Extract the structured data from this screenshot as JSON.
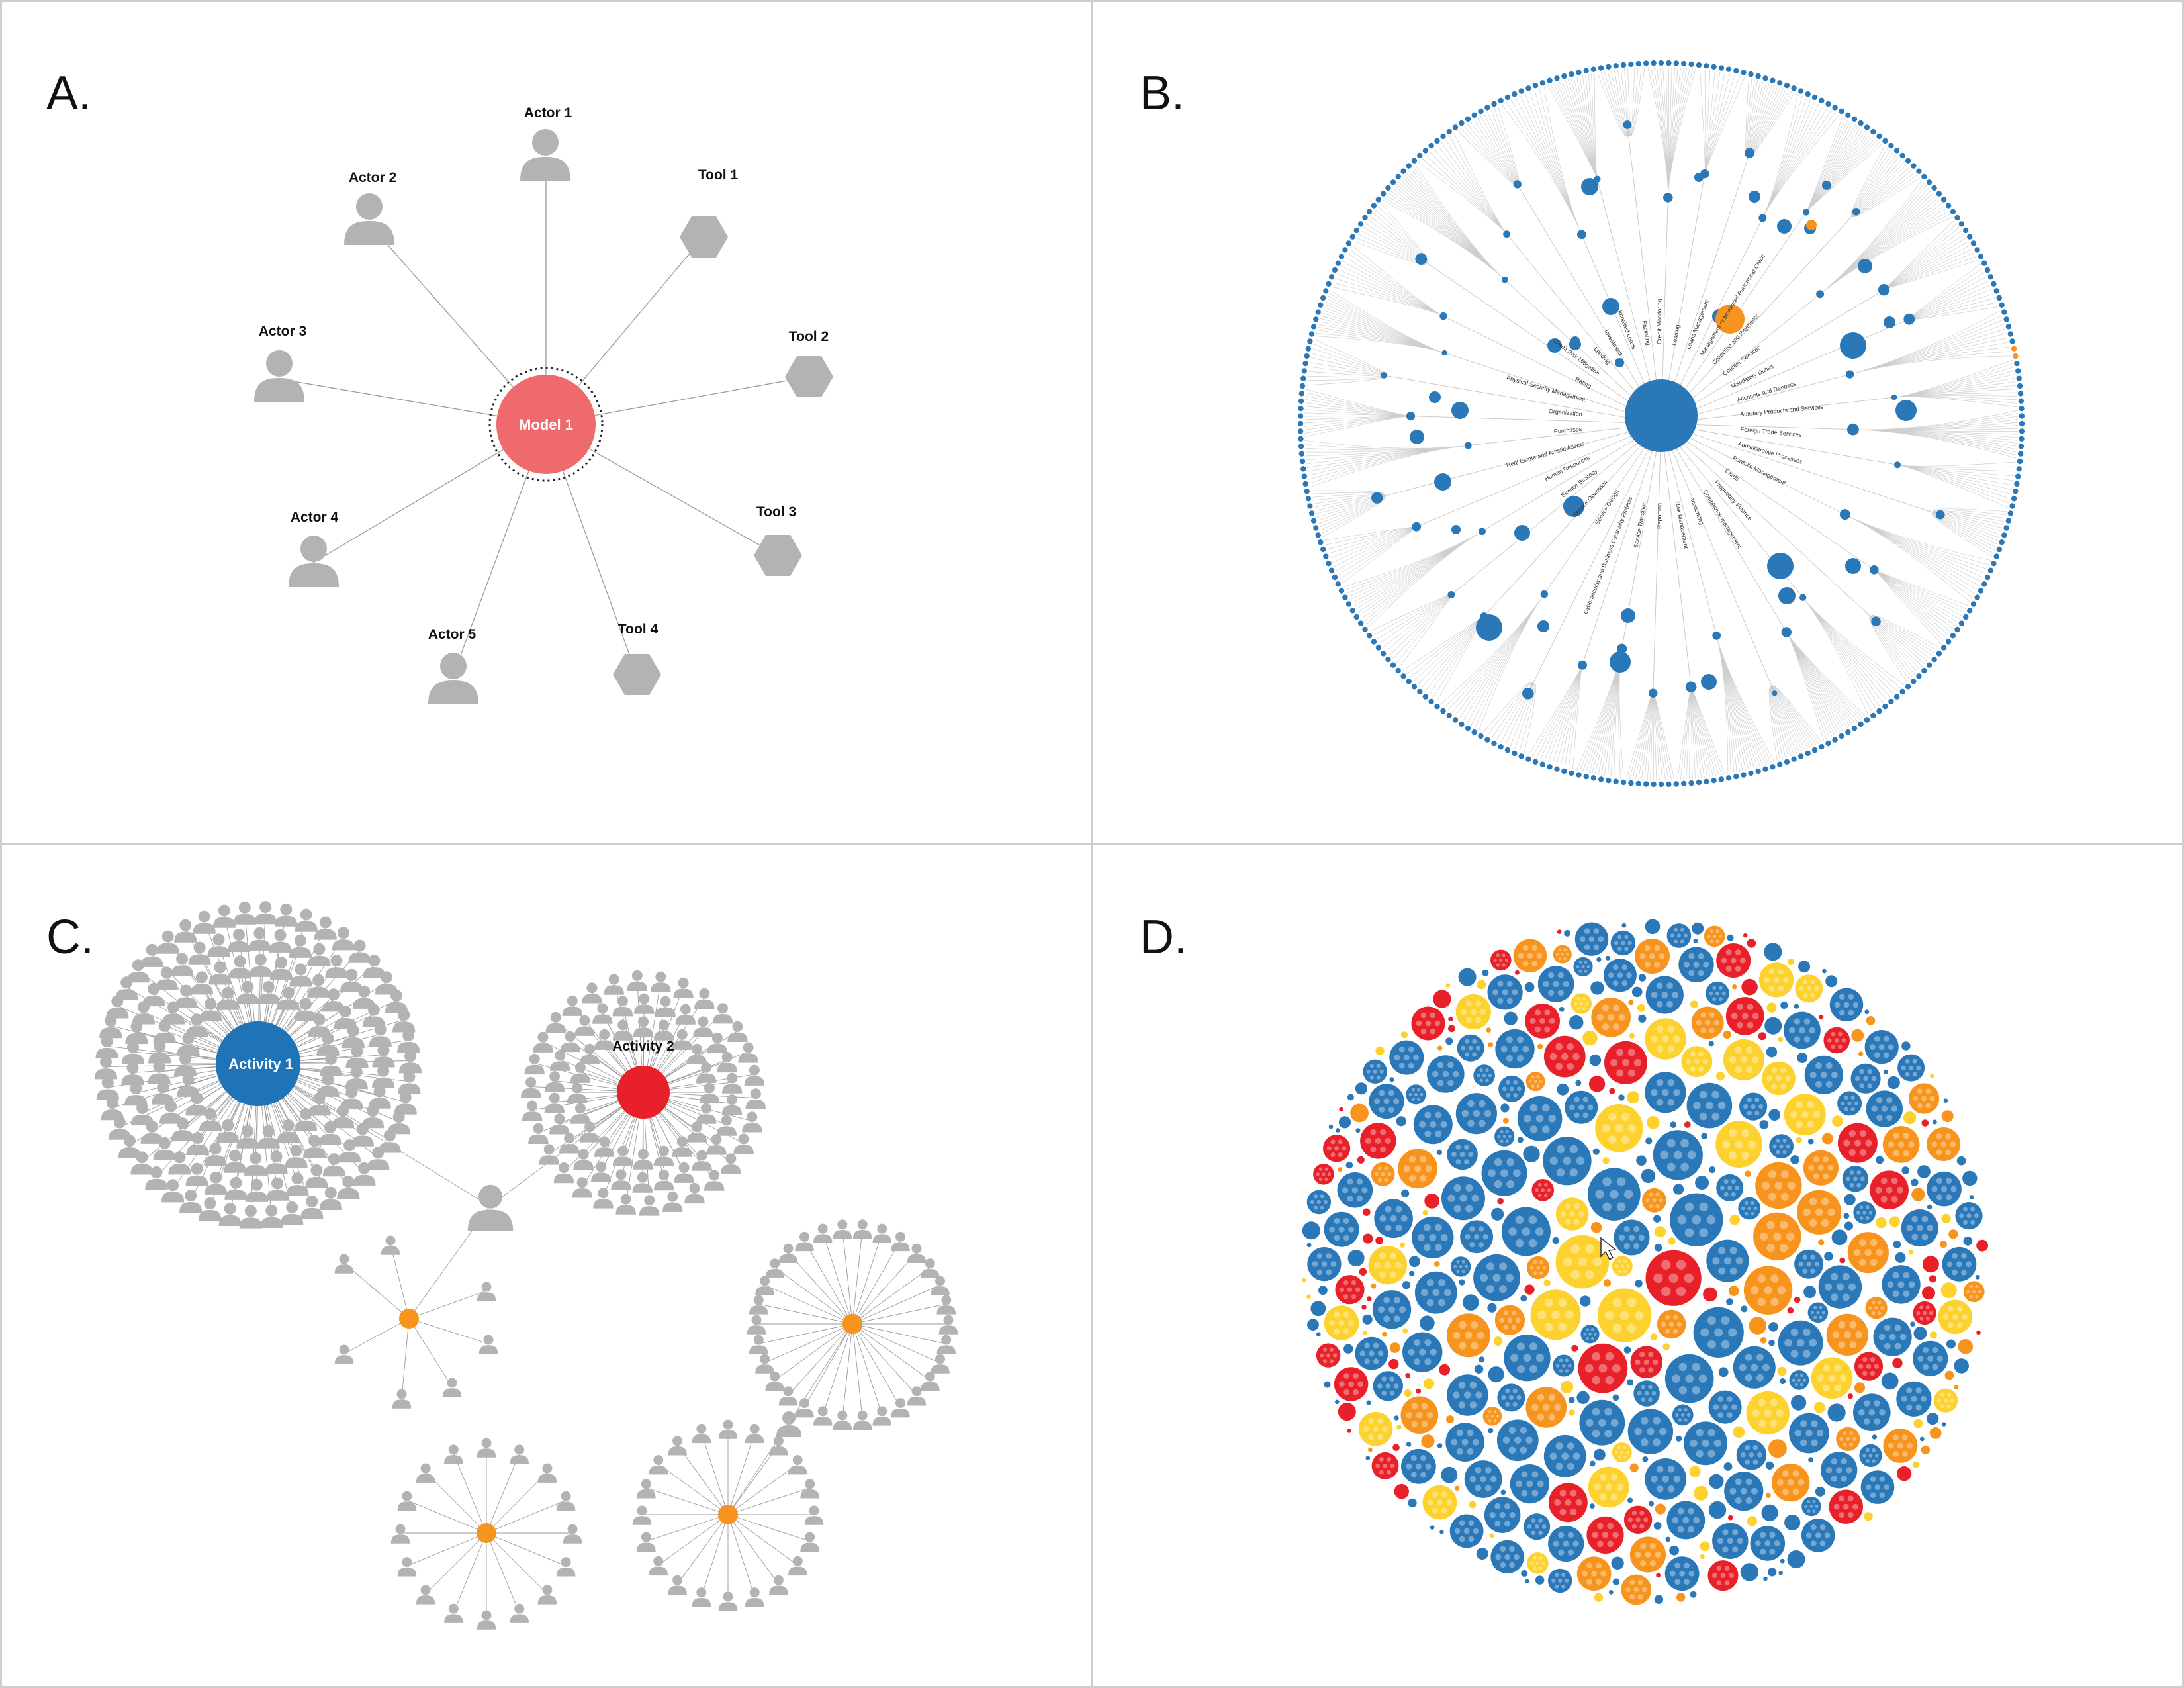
{
  "colors": {
    "panel_border": "#cfcfcf",
    "gray_node": "#b3b3b3",
    "edge": "#9a9a9a",
    "model_red": "#ef6a6c",
    "activity_blue": "#1f73b7",
    "activity_red": "#e8202a",
    "orange": "#f7941d",
    "yellow": "#fdd22f",
    "radial_blue": "#2a78b8"
  },
  "panels": {
    "a": {
      "label": "A."
    },
    "b": {
      "label": "B."
    },
    "c": {
      "label": "C."
    },
    "d": {
      "label": "D."
    }
  },
  "panel_a": {
    "center": {
      "label": "Model 1"
    },
    "nodes": [
      {
        "label": "Actor 1",
        "kind": "actor-icon"
      },
      {
        "label": "Actor 2",
        "kind": "actor-icon"
      },
      {
        "label": "Tool 1",
        "kind": "tool-icon"
      },
      {
        "label": "Actor 3",
        "kind": "actor-icon"
      },
      {
        "label": "Tool 2",
        "kind": "tool-icon"
      },
      {
        "label": "Actor 4",
        "kind": "actor-icon"
      },
      {
        "label": "Tool 3",
        "kind": "tool-icon"
      },
      {
        "label": "Actor 5",
        "kind": "actor-icon"
      },
      {
        "label": "Tool 4",
        "kind": "tool-icon"
      }
    ]
  },
  "panel_b": {
    "inner_labels": [
      "Loans Management",
      "Management of Monitored Performing Credit",
      "Collection and Payments",
      "Counter Services",
      "Mandatory Duties",
      "Accounts and Deposits",
      "Auxiliary Products and Services",
      "Foreign Trade Services",
      "Administrative Processes",
      "Portfolio Management",
      "Cards",
      "Proprietary Finance",
      "Compliance management",
      "Accounting",
      "Risk Management",
      "Reporting",
      "Service Transition",
      "Cybersecurity and Business Continuity Projects",
      "Service Design",
      "Service Operation",
      "Service Strategy",
      "Human Resources",
      "Real Estate and Artistic Assets",
      "Purchases",
      "Organization",
      "Physical Security Management",
      "Rating",
      "Credit Risk Mitigation",
      "Lending",
      "Investment",
      "Impaired Loans",
      "Factoring",
      "Credit Monitoring",
      "Leasing"
    ]
  },
  "panel_c": {
    "activities": [
      {
        "label": "Activity 1"
      },
      {
        "label": "Activity 2"
      }
    ]
  }
}
